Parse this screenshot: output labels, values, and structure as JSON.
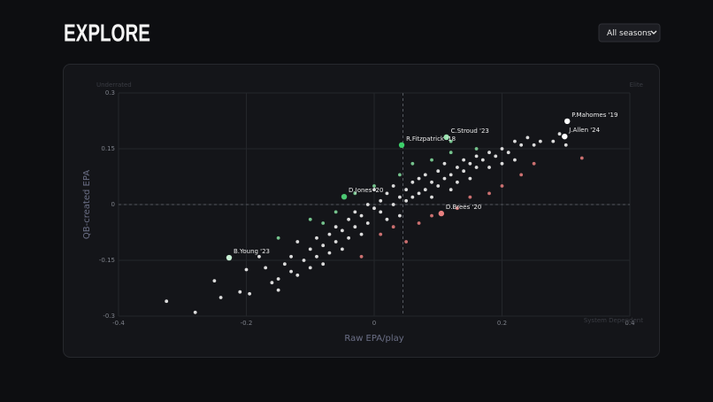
{
  "header": {
    "title": "EXPLORE",
    "dropdown": "All seasons"
  },
  "chart_data": {
    "type": "scatter",
    "x_label": "Raw EPA/play",
    "y_label": "QB-created EPA",
    "xlim": [
      -0.4,
      0.4
    ],
    "xticks": [
      -0.4,
      -0.2,
      0,
      0.2,
      0.4
    ],
    "ylim": [
      -0.3,
      0.3
    ],
    "yticks": [
      -0.3,
      -0.15,
      0,
      0.15,
      0.3
    ],
    "grid": true,
    "x_ref": 0.045,
    "y_ref": 0,
    "quadrant_labels": {
      "top_left": "Underrated",
      "top_right": "Elite",
      "bottom_right": "System Dependent"
    },
    "series": [
      {
        "color": "#f2f2f2",
        "x": [
          -0.325,
          -0.28,
          -0.25,
          -0.24,
          -0.21,
          -0.195,
          -0.2,
          -0.18,
          -0.17,
          -0.16,
          -0.15,
          -0.15,
          -0.14,
          -0.13,
          -0.13,
          -0.12,
          -0.12,
          -0.11,
          -0.1,
          -0.1,
          -0.09,
          -0.09,
          -0.08,
          -0.08,
          -0.07,
          -0.07,
          -0.06,
          -0.06,
          -0.05,
          -0.05,
          -0.04,
          -0.04,
          -0.03,
          -0.03,
          -0.02,
          -0.02,
          -0.01,
          -0.01,
          0,
          0,
          0.01,
          0.01,
          0.02,
          0.02,
          0.03,
          0.03,
          0.04,
          0.04,
          0.05,
          0.05,
          0.06,
          0.06,
          0.07,
          0.07,
          0.08,
          0.08,
          0.09,
          0.09,
          0.1,
          0.1,
          0.11,
          0.11,
          0.12,
          0.12,
          0.13,
          0.13,
          0.14,
          0.14,
          0.15,
          0.15,
          0.16,
          0.16,
          0.17,
          0.18,
          0.18,
          0.19,
          0.2,
          0.2,
          0.21,
          0.22,
          0.22,
          0.23,
          0.24,
          0.25,
          0.26,
          0.28,
          0.29,
          0.3
        ],
        "values": [
          -0.26,
          -0.29,
          -0.205,
          -0.25,
          -0.235,
          -0.24,
          -0.175,
          -0.14,
          -0.17,
          -0.21,
          -0.23,
          -0.2,
          -0.16,
          -0.14,
          -0.18,
          -0.19,
          -0.1,
          -0.15,
          -0.12,
          -0.17,
          -0.09,
          -0.14,
          -0.11,
          -0.16,
          -0.08,
          -0.13,
          -0.1,
          -0.06,
          -0.12,
          -0.07,
          -0.04,
          -0.09,
          -0.06,
          -0.02,
          -0.03,
          -0.08,
          0,
          -0.05,
          -0.01,
          0.04,
          -0.02,
          0.01,
          -0.04,
          0.03,
          0,
          0.05,
          0.02,
          -0.03,
          0.04,
          0.01,
          0.06,
          0.02,
          0.03,
          0.07,
          0.04,
          0.08,
          0.06,
          0.02,
          0.09,
          0.05,
          0.07,
          0.11,
          0.08,
          0.04,
          0.1,
          0.06,
          0.12,
          0.09,
          0.11,
          0.07,
          0.1,
          0.13,
          0.12,
          0.14,
          0.1,
          0.13,
          0.15,
          0.11,
          0.14,
          0.17,
          0.12,
          0.16,
          0.18,
          0.16,
          0.17,
          0.17,
          0.19,
          0.16
        ]
      },
      {
        "color": "#7fd69a",
        "x": [
          -0.15,
          -0.1,
          -0.06,
          -0.03,
          0,
          0.04,
          0.06,
          0.09,
          0.12,
          0.12,
          0.16,
          -0.08
        ],
        "values": [
          -0.09,
          -0.04,
          -0.02,
          0.03,
          0.05,
          0.08,
          0.11,
          0.12,
          0.14,
          0.17,
          0.15,
          -0.05
        ]
      },
      {
        "color": "#e07a7a",
        "x": [
          -0.02,
          0.01,
          0.05,
          0.07,
          0.09,
          0.13,
          0.15,
          0.18,
          0.2,
          0.23,
          0.25,
          0.03,
          0.325
        ],
        "values": [
          -0.14,
          -0.08,
          -0.1,
          -0.05,
          -0.03,
          -0.01,
          0.02,
          0.03,
          0.05,
          0.08,
          0.11,
          -0.06,
          0.125
        ]
      },
      {
        "highlight": true,
        "colors": [
          "#ffffff",
          "#ffffff",
          "#9be3b0",
          "#3ccf6a",
          "#4cc873",
          "#e88080",
          "#c9f0d5"
        ],
        "x": [
          0.302,
          0.298,
          0.113,
          0.043,
          -0.047,
          0.105,
          -0.227
        ],
        "values": [
          0.224,
          0.183,
          0.181,
          0.16,
          0.021,
          -0.024,
          -0.143
        ],
        "labels": [
          "P.Mahomes '19",
          "J.Allen '24",
          "C.Stroud '23",
          "R.Fitzpatrick '18",
          "D.Jones '20",
          "D.Brees '20",
          "B.Young '23"
        ]
      }
    ]
  }
}
